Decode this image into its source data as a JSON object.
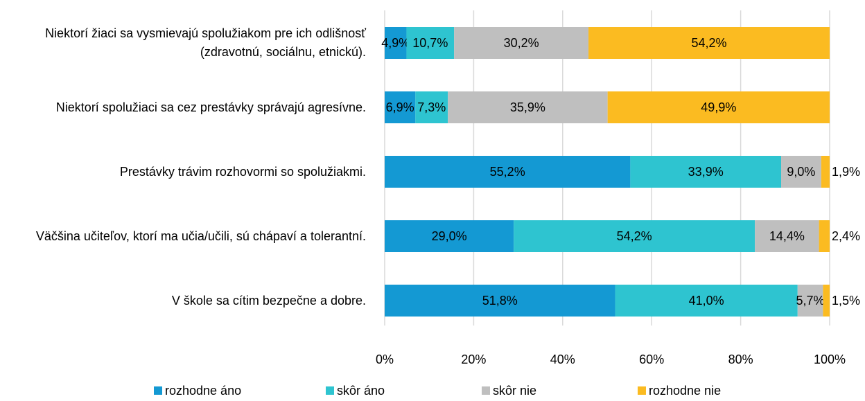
{
  "chart_data": {
    "type": "stacked-bar-horizontal",
    "categories": [
      "Niektorí žiaci sa vysmievajú spolužiakom pre ich odlišnosť (zdravotnú, sociálnu, etnickú).",
      "Niektorí spolužiaci sa cez prestávky správajú agresívne.",
      "Prestávky trávim rozhovormi so spolužiakmi.",
      "Väčšina učiteľov, ktorí ma učia/učili, sú chápaví a tolerantní.",
      "V škole sa cítim bezpečne a dobre."
    ],
    "series": [
      {
        "name": "rozhodne áno",
        "color": "#1499d3",
        "values": [
          4.9,
          6.9,
          55.2,
          29.0,
          51.8
        ],
        "value_labels": [
          "4,9%",
          "6,9%",
          "55,2%",
          "29,0%",
          "51,8%"
        ]
      },
      {
        "name": "skôr áno",
        "color": "#2ec4d0",
        "values": [
          10.7,
          7.3,
          33.9,
          54.2,
          41.0
        ],
        "value_labels": [
          "10,7%",
          "7,3%",
          "33,9%",
          "54,2%",
          "41,0%"
        ]
      },
      {
        "name": "skôr nie",
        "color": "#bfbfbf",
        "values": [
          30.2,
          35.9,
          9.0,
          14.4,
          5.7
        ],
        "value_labels": [
          "30,2%",
          "35,9%",
          "9,0%",
          "14,4%",
          "5,7%"
        ]
      },
      {
        "name": "rozhodne nie",
        "color": "#fbbb21",
        "values": [
          54.2,
          49.9,
          1.9,
          2.4,
          1.5
        ],
        "value_labels": [
          "54,2%",
          "49,9%",
          "1,9%",
          "2,4%",
          "1,5%"
        ]
      }
    ],
    "xlim": [
      0,
      100
    ],
    "xticks": [
      {
        "value": 0,
        "label": "0%"
      },
      {
        "value": 20,
        "label": "20%"
      },
      {
        "value": 40,
        "label": "40%"
      },
      {
        "value": 60,
        "label": "60%"
      },
      {
        "value": 80,
        "label": "80%"
      },
      {
        "value": 100,
        "label": "100%"
      }
    ],
    "grid": true,
    "legend": "bottom"
  }
}
